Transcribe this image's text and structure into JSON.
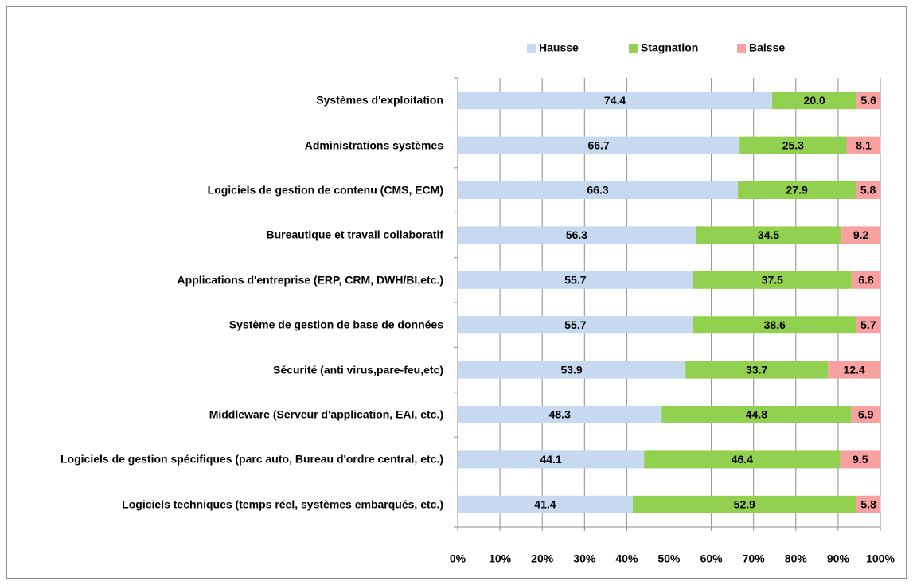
{
  "chart_data": {
    "type": "stacked_bar_horizontal",
    "categories": [
      "Systèmes d'exploitation",
      "Administrations systèmes",
      "Logiciels de gestion de contenu (CMS, ECM)",
      "Bureautique et travail collaboratif",
      "Applications d'entreprise (ERP, CRM, DWH/BI,etc.)",
      "Système de gestion de base de données",
      "Sécurité (anti virus,pare-feu,etc)",
      "Middleware (Serveur d'application, EAI, etc.)",
      "Logiciels de gestion spécifiques (parc auto, Bureau d'ordre central, etc.)",
      "Logiciels techniques (temps réel, systèmes embarqués, etc.)"
    ],
    "series": [
      {
        "name": "Hausse",
        "color": "#c6d9f1",
        "values": [
          74.4,
          66.7,
          66.3,
          56.3,
          55.7,
          55.7,
          53.9,
          48.3,
          44.1,
          41.4
        ],
        "value_labels": [
          "74.4",
          "66.7",
          "66.3",
          "56.3",
          "55.7",
          "55.7",
          "53.9",
          "48.3",
          "44.1",
          "41.4"
        ]
      },
      {
        "name": "Stagnation",
        "color": "#92d050",
        "values": [
          20.0,
          25.3,
          27.9,
          34.5,
          37.5,
          38.6,
          33.7,
          44.8,
          46.4,
          52.9
        ],
        "value_labels": [
          "20.0",
          "25.3",
          "27.9",
          "34.5",
          "37.5",
          "38.6",
          "33.7",
          "44.8",
          "46.4",
          "52.9"
        ]
      },
      {
        "name": "Baisse",
        "color": "#f9a0a0",
        "values": [
          5.6,
          8.1,
          5.8,
          9.2,
          6.8,
          5.7,
          12.4,
          6.9,
          9.5,
          5.8
        ],
        "value_labels": [
          "5.6",
          "8.1",
          "5.8",
          "9.2",
          "6.8",
          "5.7",
          "12.4",
          "6.9",
          "9.5",
          "5.8"
        ]
      }
    ],
    "xlim": [
      0,
      100
    ],
    "xticks": [
      {
        "value": 0,
        "label": "0%"
      },
      {
        "value": 10,
        "label": "10%"
      },
      {
        "value": 20,
        "label": "20%"
      },
      {
        "value": 30,
        "label": "30%"
      },
      {
        "value": 40,
        "label": "40%"
      },
      {
        "value": 50,
        "label": "50%"
      },
      {
        "value": 60,
        "label": "60%"
      },
      {
        "value": 70,
        "label": "70%"
      },
      {
        "value": 80,
        "label": "80%"
      },
      {
        "value": 90,
        "label": "90%"
      },
      {
        "value": 100,
        "label": "100%"
      }
    ],
    "grid": true,
    "legend": "top"
  }
}
